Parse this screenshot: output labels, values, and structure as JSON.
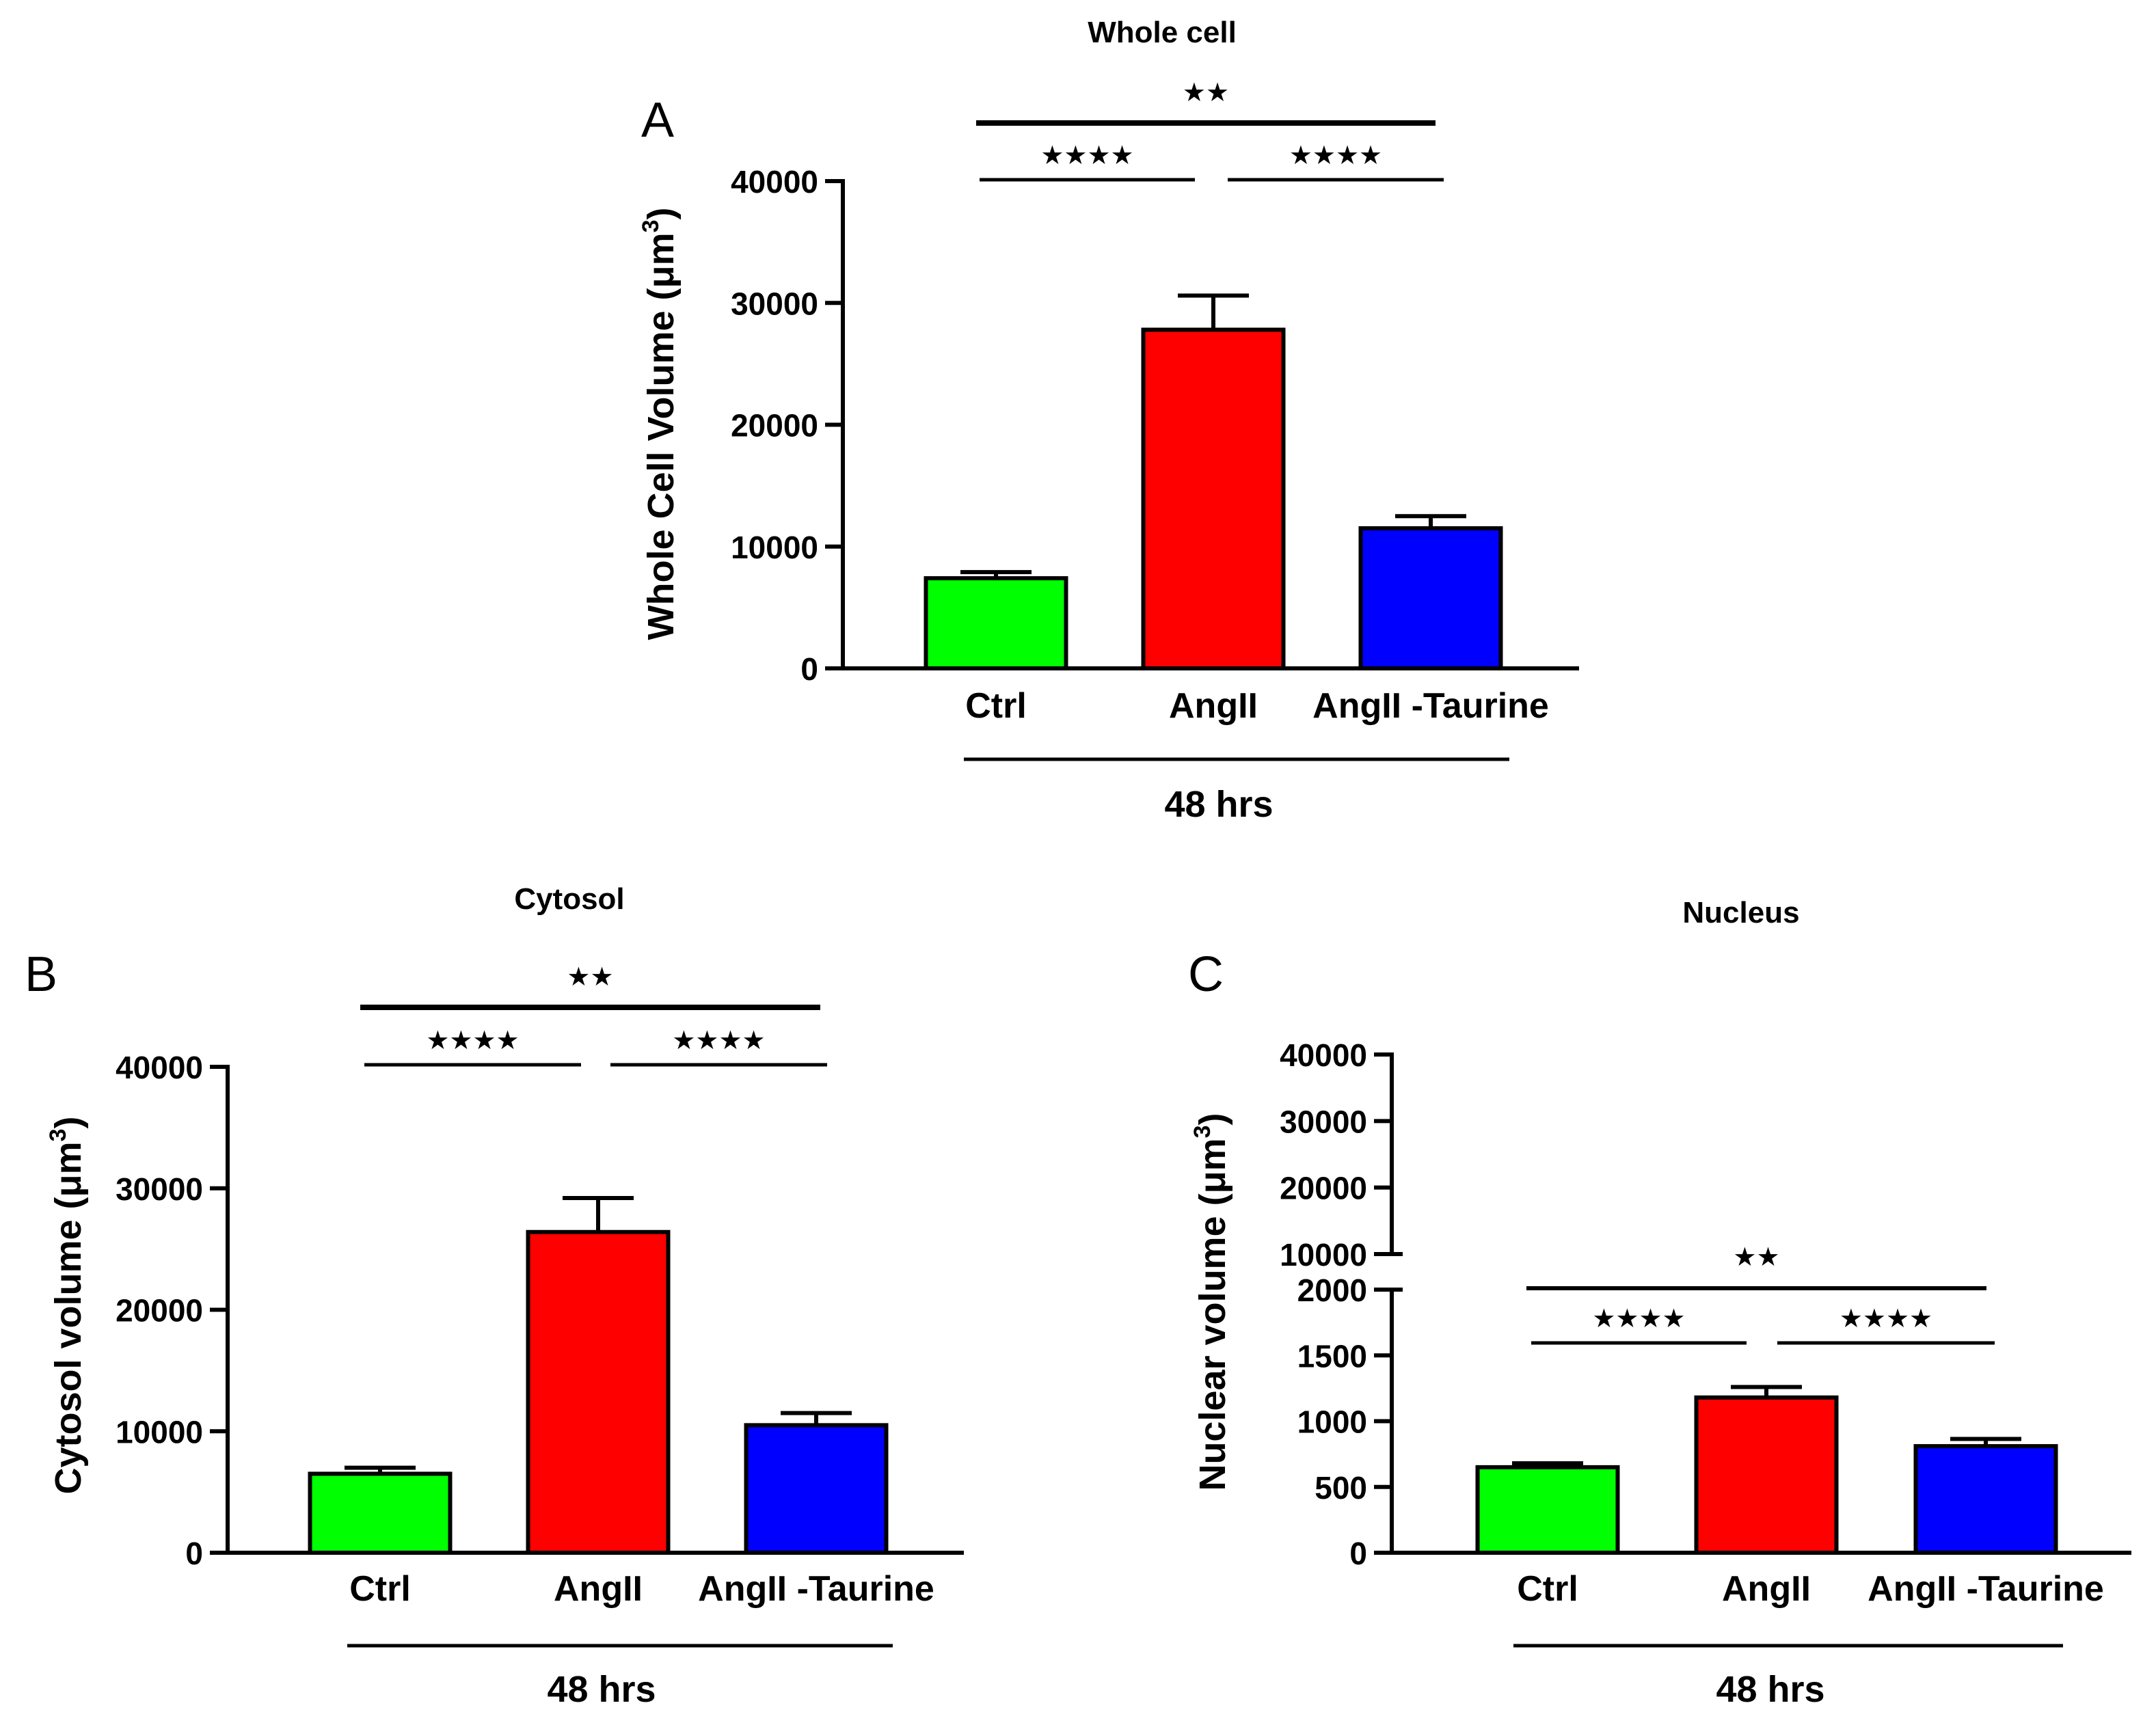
{
  "chart_data": [
    {
      "panel_letter": "A",
      "type": "bar",
      "title": "Whole cell",
      "ylabel": "Whole Cell Volume (μm",
      "ylabel_sup": "3",
      "ylabel_close": ")",
      "categories": [
        "Ctrl",
        "AngII",
        "AngII -Taurine"
      ],
      "values": [
        7400,
        27800,
        11500
      ],
      "errors": [
        500,
        2800,
        1000
      ],
      "colors": [
        "#00ff00",
        "#ff0000",
        "#0000ff"
      ],
      "ylim": [
        0,
        40000
      ],
      "yticks": [
        0,
        10000,
        20000,
        30000,
        40000
      ],
      "ytick_labels": [
        "0",
        "10000",
        "20000",
        "30000",
        "40000"
      ],
      "xgroup_label": "48 hrs",
      "significance": [
        {
          "from": 0,
          "to": 1,
          "label": "★★★★"
        },
        {
          "from": 1,
          "to": 2,
          "label": "★★★★"
        },
        {
          "from": 0,
          "to": 2,
          "label": "★★"
        }
      ]
    },
    {
      "panel_letter": "B",
      "type": "bar",
      "title": "Cytosol",
      "ylabel": "Cytosol volume (μm",
      "ylabel_sup": "3",
      "ylabel_close": ")",
      "categories": [
        "Ctrl",
        "AngII",
        "AngII -Taurine"
      ],
      "values": [
        6500,
        26400,
        10500
      ],
      "errors": [
        500,
        2800,
        1000
      ],
      "colors": [
        "#00ff00",
        "#ff0000",
        "#0000ff"
      ],
      "ylim": [
        0,
        40000
      ],
      "yticks": [
        0,
        10000,
        20000,
        30000,
        40000
      ],
      "ytick_labels": [
        "0",
        "10000",
        "20000",
        "30000",
        "40000"
      ],
      "xgroup_label": "48 hrs",
      "significance": [
        {
          "from": 0,
          "to": 1,
          "label": "★★★★"
        },
        {
          "from": 1,
          "to": 2,
          "label": "★★★★"
        },
        {
          "from": 0,
          "to": 2,
          "label": "★★"
        }
      ]
    },
    {
      "panel_letter": "C",
      "type": "bar",
      "title": "Nucleus",
      "ylabel": "Nuclear volume (μm",
      "ylabel_sup": "3",
      "ylabel_close": ")",
      "categories": [
        "Ctrl",
        "AngII",
        "AngII -Taurine"
      ],
      "values": [
        650,
        1180,
        810
      ],
      "errors": [
        30,
        80,
        55
      ],
      "colors": [
        "#00ff00",
        "#ff0000",
        "#0000ff"
      ],
      "axis_break": true,
      "lower_range": [
        0,
        2000
      ],
      "lower_ticks": [
        0,
        500,
        1000,
        1500,
        2000
      ],
      "lower_tick_labels": [
        "0",
        "500",
        "1000",
        "1500",
        "2000"
      ],
      "upper_range": [
        10000,
        40000
      ],
      "upper_ticks": [
        10000,
        20000,
        30000,
        40000
      ],
      "upper_tick_labels": [
        "10000",
        "20000",
        "30000",
        "40000"
      ],
      "xgroup_label": "48 hrs",
      "significance": [
        {
          "from": 0,
          "to": 1,
          "label": "★★★★"
        },
        {
          "from": 1,
          "to": 2,
          "label": "★★★★"
        },
        {
          "from": 0,
          "to": 2,
          "label": "★★"
        }
      ]
    }
  ]
}
